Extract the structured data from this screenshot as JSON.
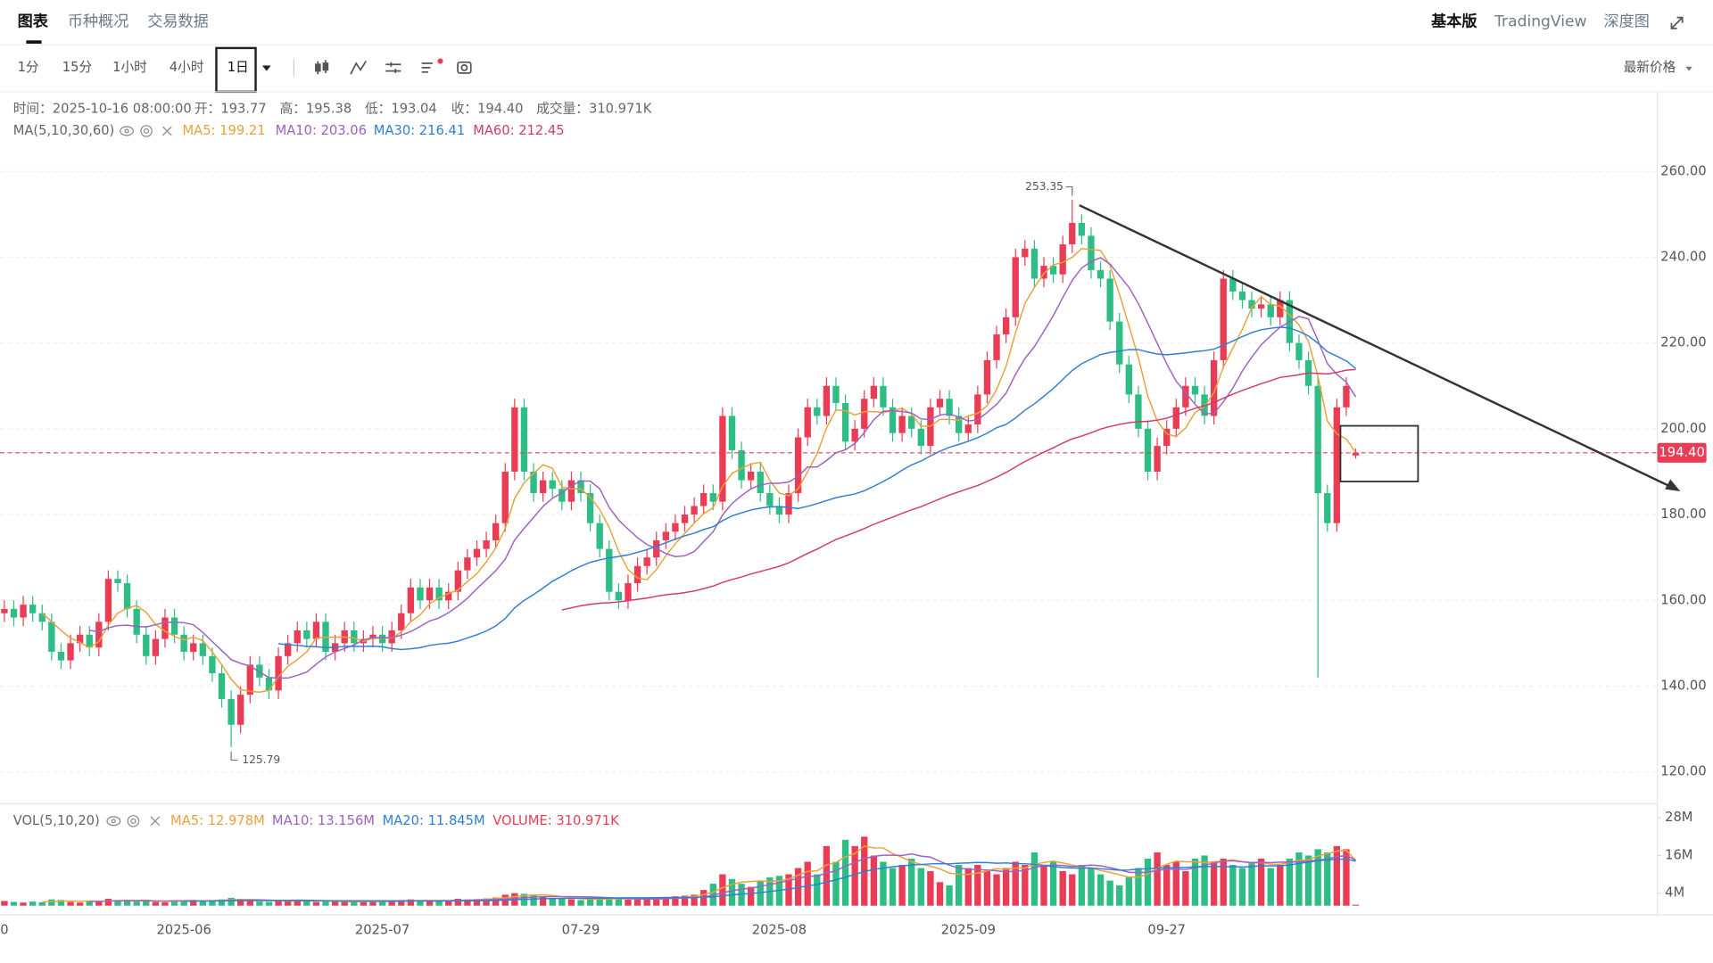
{
  "tabs": [
    "图表",
    "币种概况",
    "交易数据"
  ],
  "view_modes": [
    "基本版",
    "TradingView",
    "深度图"
  ],
  "intervals": [
    "1分",
    "15分",
    "1小时",
    "4小时",
    "1日"
  ],
  "price_type": "最新价格",
  "chart_data": {
    "type": "candlestick",
    "info_texts": [
      "时间：2025-10-16 08:00:00",
      "开：193.77",
      "高：195.38",
      "低：193.04",
      "收：194.40",
      "成交量：310.971K"
    ],
    "ma_title": "MA(5,10,30,60)",
    "ma_legend": [
      {
        "label": "MA5: 199.21",
        "color": "#e9a23b",
        "period": 5
      },
      {
        "label": "MA10: 203.06",
        "color": "#9d62c1",
        "period": 10
      },
      {
        "label": "MA30: 216.41",
        "color": "#2f7fd6",
        "period": 30
      },
      {
        "label": "MA60: 212.45",
        "color": "#d23a6e",
        "period": 60
      }
    ],
    "vol_title": "VOL(5,10,20)",
    "vol_legend": [
      {
        "label": "MA5: 12.978M",
        "color": "#e9a23b",
        "period": 5
      },
      {
        "label": "MA10: 13.156M",
        "color": "#9d62c1",
        "period": 10
      },
      {
        "label": "MA20: 11.845M",
        "color": "#2f7fd6",
        "period": 20
      },
      {
        "label": "VOLUME: 310.971K",
        "color": "#ea3d55"
      }
    ],
    "up_color": "#ea3d55",
    "down_color": "#2dbd85",
    "categories": [
      "0",
      null,
      null,
      null,
      null,
      null,
      null,
      null,
      null,
      null,
      null,
      null,
      null,
      null,
      null,
      null,
      null,
      null,
      null,
      "2025-06",
      null,
      null,
      null,
      null,
      null,
      null,
      null,
      null,
      null,
      null,
      null,
      null,
      null,
      null,
      null,
      null,
      null,
      null,
      null,
      null,
      "2025-07",
      null,
      null,
      null,
      null,
      null,
      null,
      null,
      null,
      null,
      null,
      null,
      null,
      null,
      null,
      null,
      null,
      null,
      null,
      null,
      null,
      "07-29",
      null,
      null,
      null,
      null,
      null,
      null,
      null,
      null,
      null,
      null,
      null,
      null,
      null,
      null,
      null,
      null,
      null,
      null,
      null,
      null,
      "2025-08",
      null,
      null,
      null,
      null,
      null,
      null,
      null,
      null,
      null,
      null,
      null,
      null,
      null,
      null,
      null,
      null,
      null,
      null,
      null,
      "2025-09",
      null,
      null,
      null,
      null,
      null,
      null,
      null,
      null,
      null,
      null,
      null,
      null,
      null,
      null,
      null,
      null,
      null,
      null,
      null,
      null,
      "09-27",
      null,
      null,
      null,
      null,
      null,
      null,
      null,
      null,
      null,
      null,
      null,
      null,
      null,
      null,
      null,
      null,
      null,
      null,
      null,
      null
    ],
    "open": [
      157,
      158,
      156,
      159,
      157,
      155,
      148,
      146,
      150,
      152,
      149,
      155,
      165,
      164,
      158,
      152,
      147,
      151,
      156,
      152,
      148,
      150,
      147,
      143,
      137,
      131,
      138,
      145,
      142,
      139,
      147,
      150,
      153,
      151,
      155,
      148,
      150,
      153,
      150,
      151,
      152,
      150,
      153,
      157,
      163,
      160,
      163,
      160,
      162,
      167,
      170,
      172,
      174,
      178,
      190,
      205,
      190,
      185,
      188,
      186,
      183,
      188,
      185,
      178,
      172,
      162,
      160,
      164,
      168,
      170,
      174,
      176,
      178,
      180,
      182,
      185,
      183,
      203,
      195,
      188,
      190,
      185,
      182,
      180,
      185,
      198,
      205,
      203,
      210,
      206,
      197,
      200,
      207,
      210,
      205,
      199,
      203,
      200,
      196,
      205,
      207,
      203,
      199,
      201,
      208,
      216,
      222,
      226,
      240,
      242,
      235,
      238,
      236,
      243,
      248,
      245,
      237,
      235,
      225,
      215,
      208,
      200,
      190,
      196,
      200,
      205,
      210,
      208,
      203,
      216,
      235,
      232,
      230,
      228,
      229,
      226,
      230,
      220,
      216,
      210,
      185,
      178,
      205,
      193.77
    ],
    "high": [
      160,
      160,
      161,
      161,
      159,
      157,
      150,
      152,
      154,
      154,
      157,
      167,
      167,
      166,
      160,
      154,
      153,
      158,
      158,
      154,
      152,
      152,
      149,
      145,
      139,
      140,
      147,
      147,
      144,
      149,
      152,
      155,
      155,
      157,
      157,
      152,
      155,
      155,
      153,
      154,
      154,
      155,
      159,
      165,
      165,
      165,
      165,
      164,
      169,
      172,
      174,
      176,
      180,
      192,
      207,
      207,
      192,
      190,
      190,
      188,
      190,
      190,
      187,
      180,
      174,
      164,
      166,
      170,
      172,
      176,
      178,
      180,
      182,
      184,
      187,
      187,
      205,
      205,
      197,
      192,
      192,
      187,
      184,
      187,
      200,
      207,
      207,
      212,
      212,
      208,
      202,
      209,
      212,
      212,
      207,
      205,
      205,
      202,
      207,
      209,
      209,
      205,
      203,
      210,
      218,
      224,
      228,
      242,
      244,
      244,
      240,
      240,
      245,
      253.35,
      250,
      247,
      239,
      237,
      227,
      217,
      210,
      202,
      198,
      202,
      207,
      212,
      212,
      210,
      218,
      237,
      237,
      234,
      232,
      231,
      231,
      232,
      232,
      222,
      218,
      212,
      187,
      207,
      212,
      195.38
    ],
    "low": [
      155,
      154,
      154,
      155,
      153,
      146,
      144,
      144,
      148,
      147,
      147,
      153,
      162,
      156,
      150,
      145,
      145,
      149,
      150,
      146,
      146,
      145,
      141,
      135,
      125.79,
      129,
      136,
      140,
      137,
      137,
      145,
      148,
      149,
      149,
      146,
      146,
      148,
      148,
      148,
      149,
      148,
      148,
      151,
      155,
      158,
      158,
      158,
      158,
      160,
      165,
      168,
      170,
      172,
      176,
      188,
      188,
      183,
      183,
      184,
      181,
      181,
      183,
      176,
      170,
      160,
      158,
      158,
      162,
      166,
      168,
      172,
      174,
      176,
      178,
      180,
      181,
      181,
      193,
      186,
      186,
      183,
      180,
      178,
      178,
      183,
      196,
      201,
      201,
      204,
      195,
      195,
      198,
      205,
      203,
      197,
      197,
      198,
      194,
      194,
      203,
      201,
      197,
      197,
      199,
      206,
      214,
      220,
      224,
      238,
      233,
      233,
      234,
      234,
      241,
      243,
      235,
      233,
      223,
      213,
      206,
      198,
      188,
      188,
      194,
      198,
      203,
      206,
      201,
      201,
      214,
      230,
      228,
      226,
      226,
      224,
      224,
      218,
      214,
      208,
      142,
      176,
      176,
      203,
      193.04
    ],
    "close": [
      158,
      156,
      159,
      157,
      155,
      148,
      146,
      150,
      152,
      149,
      155,
      165,
      164,
      158,
      152,
      147,
      151,
      156,
      152,
      148,
      150,
      147,
      143,
      137,
      131,
      138,
      145,
      142,
      139,
      147,
      150,
      153,
      151,
      155,
      148,
      150,
      153,
      150,
      151,
      152,
      150,
      153,
      157,
      163,
      160,
      163,
      160,
      162,
      167,
      170,
      172,
      174,
      178,
      190,
      205,
      190,
      185,
      188,
      186,
      183,
      188,
      185,
      178,
      172,
      162,
      160,
      164,
      168,
      170,
      174,
      176,
      178,
      180,
      182,
      185,
      183,
      203,
      195,
      188,
      190,
      185,
      182,
      180,
      185,
      198,
      205,
      203,
      210,
      206,
      197,
      200,
      207,
      210,
      205,
      199,
      203,
      200,
      196,
      205,
      207,
      203,
      199,
      201,
      208,
      216,
      222,
      226,
      240,
      242,
      235,
      238,
      236,
      243,
      248,
      245,
      237,
      235,
      225,
      215,
      208,
      200,
      190,
      196,
      200,
      205,
      210,
      208,
      203,
      216,
      235,
      232,
      230,
      228,
      229,
      226,
      230,
      220,
      216,
      210,
      185,
      178,
      205,
      210,
      194.4
    ],
    "last_label": "194.40",
    "volume": [
      1.5,
      1.2,
      1.0,
      1.3,
      1.1,
      2.0,
      1.8,
      1.2,
      1.0,
      1.4,
      1.6,
      2.2,
      1.8,
      1.5,
      1.3,
      1.9,
      1.2,
      1.1,
      1.5,
      1.6,
      1.8,
      1.4,
      1.7,
      2.0,
      2.5,
      2.2,
      1.6,
      1.3,
      1.2,
      1.5,
      1.7,
      1.9,
      1.4,
      1.2,
      1.3,
      1.5,
      1.2,
      1.1,
      1.4,
      1.6,
      1.3,
      1.5,
      1.8,
      2.0,
      1.6,
      1.5,
      1.4,
      1.7,
      2.2,
      2.0,
      2.1,
      2.3,
      2.6,
      3.5,
      4.0,
      3.8,
      3.2,
      2.8,
      2.5,
      2.2,
      2.0,
      1.8,
      2.0,
      2.4,
      2.6,
      2.2,
      1.9,
      2.0,
      2.1,
      2.5,
      2.8,
      3.0,
      3.2,
      3.5,
      5.0,
      7.0,
      10.0,
      8.5,
      7.0,
      6.0,
      8.0,
      9.0,
      9.5,
      10.0,
      12.0,
      14.0,
      10.0,
      19.0,
      14.0,
      21.0,
      19.0,
      22.0,
      16.0,
      14.0,
      12.0,
      13.0,
      15.0,
      12.0,
      11.0,
      7.5,
      6.5,
      13.0,
      12.0,
      13.0,
      11.0,
      10.0,
      12.0,
      14.0,
      13.0,
      17.0,
      13.0,
      14.0,
      11.0,
      10.0,
      13.0,
      12.0,
      10.0,
      8.0,
      6.5,
      9.0,
      12.0,
      15.0,
      17.0,
      13.0,
      14.0,
      11.0,
      15.0,
      16.0,
      14.0,
      15.0,
      13.0,
      12.0,
      14.0,
      15.0,
      12.0,
      13.0,
      15.0,
      17.0,
      16.0,
      18.0,
      17.0,
      19.0,
      18.0,
      0.310971
    ],
    "ylim": [
      112.87,
      278.33
    ],
    "yticks": [
      {
        "value": 120,
        "label": "120.00"
      },
      {
        "value": 140,
        "label": "140.00"
      },
      {
        "value": 160,
        "label": "160.00"
      },
      {
        "value": 180,
        "label": "180.00"
      },
      {
        "value": 200,
        "label": "200.00"
      },
      {
        "value": 220,
        "label": "220.00"
      },
      {
        "value": 240,
        "label": "240.00"
      },
      {
        "value": 260,
        "label": "260.00"
      }
    ],
    "volume_ylim": [
      0,
      32.2
    ],
    "volume_yticks": [
      {
        "value": 4,
        "label": "4M"
      },
      {
        "value": 16,
        "label": "16M"
      },
      {
        "value": 28,
        "label": "28M"
      }
    ],
    "grid": true
  }
}
